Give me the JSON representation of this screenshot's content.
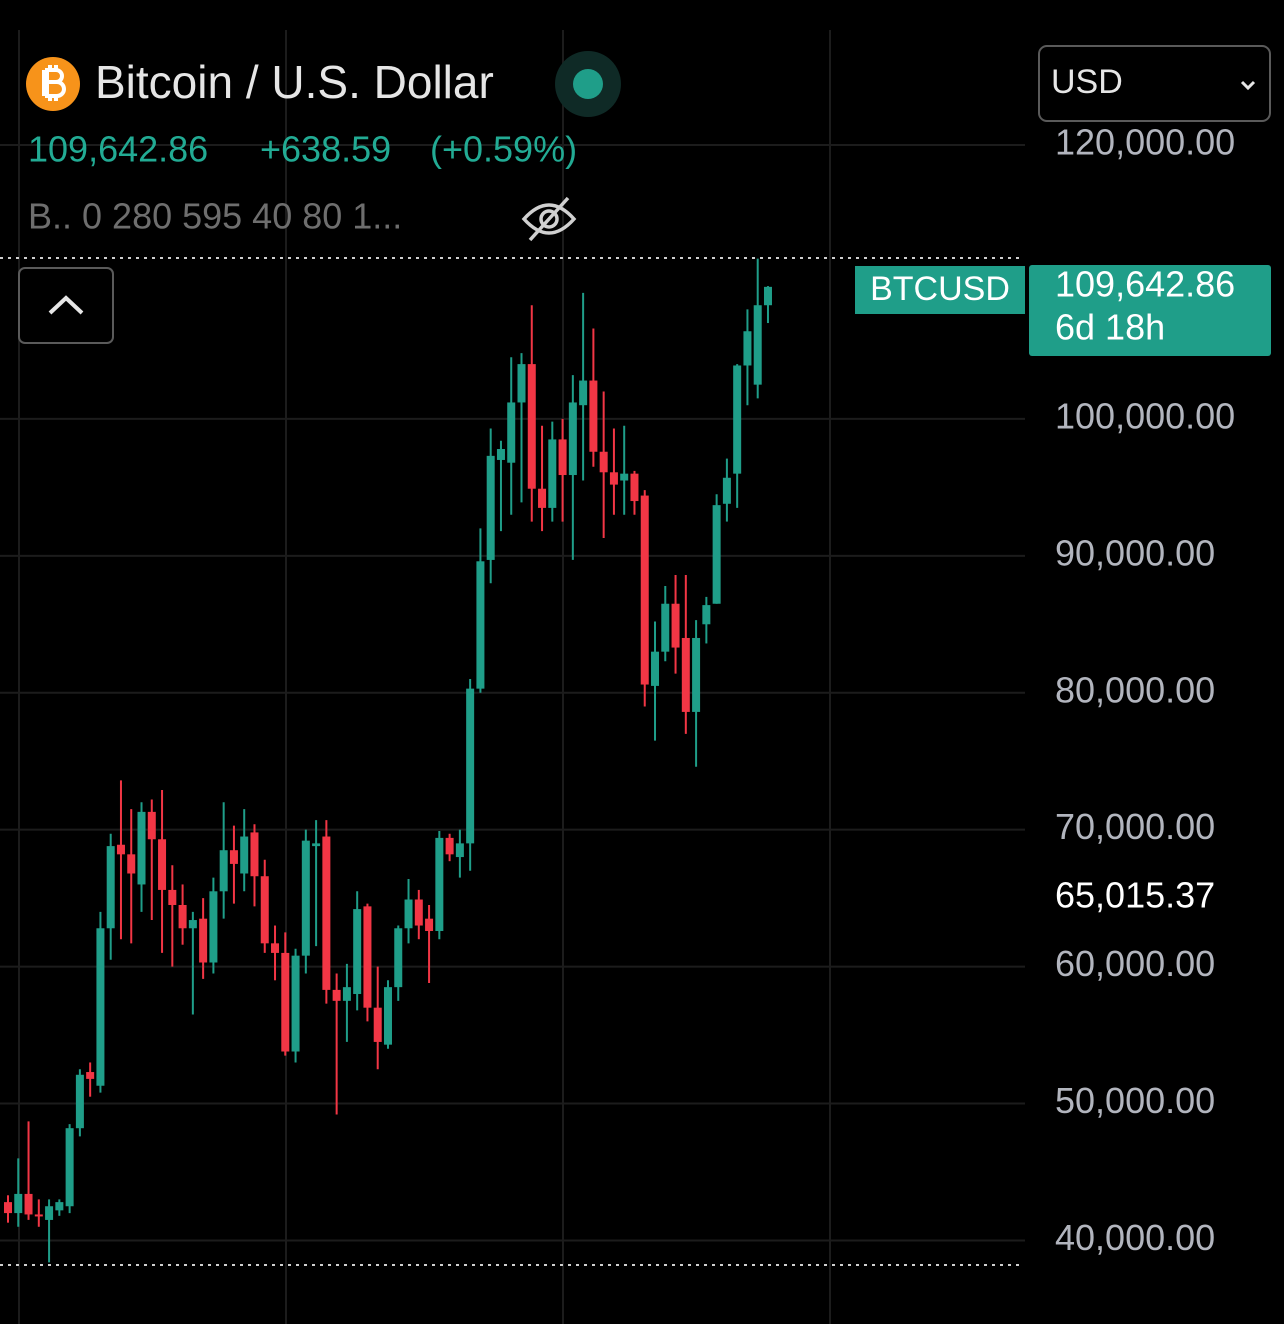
{
  "header": {
    "title": "Bitcoin / U.S. Dollar",
    "price": "109,642.86",
    "change": "+638.59",
    "change_percent": "(+0.59%)",
    "indicator": "B.. 0 280 595 40 80 1...",
    "currency": "USD"
  },
  "chart_data": {
    "type": "candlestick",
    "symbol_label": "BTCUSD",
    "price_label": {
      "value": 109642.86,
      "label": "109,642.86"
    },
    "countdown": "6d 18h",
    "annotation": {
      "value": 65015.37,
      "label": "65,015.37"
    },
    "up_color": "#1f9e89",
    "down_color": "#f23645",
    "grid": true,
    "ylim": [
      33900,
      128400
    ],
    "yticks": [
      {
        "value": 40000,
        "label": "40,000.00"
      },
      {
        "value": 50000,
        "label": "50,000.00"
      },
      {
        "value": 60000,
        "label": "60,000.00"
      },
      {
        "value": 70000,
        "label": "70,000.00"
      },
      {
        "value": 80000,
        "label": "80,000.00"
      },
      {
        "value": 90000,
        "label": "90,000.00"
      },
      {
        "value": 100000,
        "label": "100,000.00"
      },
      {
        "value": 120000,
        "label": "120,000.00"
      }
    ],
    "open": [
      42800,
      42000,
      43400,
      41900,
      41500,
      42200,
      42500,
      48200,
      52300,
      51300,
      62800,
      68900,
      68200,
      66000,
      71300,
      69300,
      65600,
      64500,
      62800,
      63500,
      60300,
      65500,
      68500,
      66800,
      69800,
      66600,
      61700,
      61000,
      53800,
      60800,
      68800,
      69500,
      58300,
      57500,
      58000,
      64400,
      57000,
      54300,
      58500,
      62800,
      64900,
      63500,
      62600,
      69400,
      68000,
      69000,
      80300,
      89700,
      97000,
      96800,
      101200,
      104000,
      94900,
      93500,
      98500,
      95900,
      101000,
      102800,
      97600,
      96100,
      95500,
      96000,
      94400,
      80500,
      83000,
      86500,
      84000,
      78600,
      85000,
      86500,
      93800,
      96000,
      103900,
      102500,
      108300
    ],
    "high": [
      43300,
      46000,
      48700,
      43000,
      43000,
      43000,
      48500,
      52500,
      53000,
      64000,
      69700,
      73600,
      71500,
      72000,
      72200,
      72900,
      67400,
      66000,
      64000,
      65000,
      66500,
      72000,
      70300,
      71500,
      70400,
      67800,
      63000,
      62500,
      61300,
      70000,
      70700,
      70700,
      59500,
      60200,
      65500,
      64600,
      60000,
      59000,
      63000,
      66400,
      65600,
      64500,
      69900,
      69700,
      70000,
      81000,
      92000,
      99300,
      98400,
      104500,
      104800,
      108300,
      99500,
      99800,
      100000,
      103200,
      109200,
      106600,
      102000,
      99300,
      99500,
      96200,
      94800,
      85200,
      87800,
      88600,
      88600,
      85300,
      87000,
      94500,
      97100,
      104000,
      108000,
      111700,
      109700
    ],
    "low": [
      41300,
      41000,
      41500,
      41000,
      38400,
      41800,
      42000,
      47600,
      50500,
      50800,
      60500,
      62000,
      61700,
      64000,
      63400,
      61000,
      60000,
      61600,
      56500,
      59100,
      59500,
      63500,
      64600,
      65500,
      64400,
      61000,
      59000,
      53500,
      53000,
      59500,
      61500,
      57300,
      49200,
      54500,
      56800,
      56000,
      52500,
      54000,
      57500,
      61700,
      62000,
      58800,
      62000,
      67700,
      66500,
      67000,
      80000,
      88000,
      91800,
      93000,
      93900,
      92500,
      91800,
      92500,
      92500,
      89700,
      95500,
      96500,
      91300,
      93000,
      93000,
      93000,
      79000,
      76500,
      82300,
      81400,
      77000,
      74600,
      83600,
      86500,
      92500,
      93500,
      101000,
      101500,
      107000
    ],
    "close": [
      42000,
      43400,
      41900,
      41800,
      42500,
      42800,
      48200,
      52100,
      51800,
      62800,
      68800,
      68200,
      66800,
      71300,
      69300,
      65600,
      64500,
      62800,
      63400,
      60300,
      65500,
      68500,
      67500,
      69500,
      66600,
      61700,
      61000,
      53800,
      60800,
      69200,
      69000,
      58300,
      57500,
      58500,
      64200,
      57000,
      54500,
      58500,
      62800,
      64900,
      63000,
      62600,
      69400,
      68200,
      69000,
      80300,
      89600,
      97300,
      97800,
      101200,
      104000,
      94900,
      93500,
      98500,
      95900,
      101200,
      102800,
      97600,
      96100,
      95200,
      96000,
      94000,
      80600,
      83000,
      86500,
      83300,
      78600,
      84000,
      86400,
      93700,
      95700,
      103900,
      106400,
      108300,
      109642.86
    ]
  }
}
